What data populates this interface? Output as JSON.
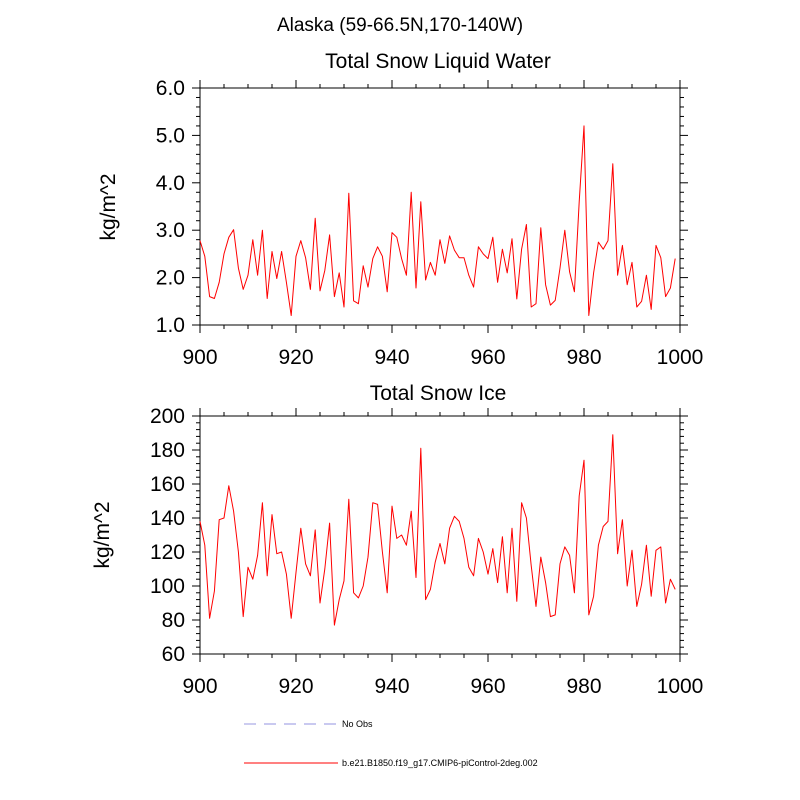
{
  "figure_title": "Alaska (59-66.5N,170-140W)",
  "legend": {
    "placement": "bottom-center",
    "entries": [
      {
        "label": "No Obs",
        "color": "#a9a9e6",
        "style": "dashed"
      },
      {
        "label": "b.e21.B1850.f19_g17.CMIP6-piControl-2deg.002",
        "color": "#ff0000",
        "style": "solid"
      }
    ]
  },
  "chart_data": [
    {
      "type": "line",
      "title": "Total Snow Liquid Water",
      "xlabel": "",
      "ylabel": "kg/m^2",
      "xlim": [
        900,
        1000
      ],
      "ylim": [
        1.0,
        6.0
      ],
      "xticks": [
        900,
        920,
        940,
        960,
        980,
        1000
      ],
      "xtick_labels": [
        "900",
        "920",
        "940",
        "960",
        "980",
        "1000"
      ],
      "yticks": [
        1.0,
        2.0,
        3.0,
        4.0,
        5.0,
        6.0
      ],
      "ytick_labels": [
        "1.0",
        "2.0",
        "3.0",
        "4.0",
        "5.0",
        "6.0"
      ],
      "grid": false,
      "series": [
        {
          "name": "b.e21.B1850.f19_g17.CMIP6-piControl-2deg.002",
          "color": "#ff0000",
          "x_start": 900,
          "x_step": 1,
          "values": [
            2.78,
            2.45,
            1.6,
            1.56,
            1.9,
            2.5,
            2.85,
            3.01,
            2.2,
            1.75,
            2.05,
            2.8,
            2.05,
            3.0,
            1.56,
            2.55,
            1.98,
            2.55,
            1.9,
            1.2,
            2.45,
            2.78,
            2.42,
            1.75,
            3.25,
            1.72,
            2.15,
            2.9,
            1.6,
            2.1,
            1.38,
            3.78,
            1.51,
            1.45,
            2.25,
            1.8,
            2.4,
            2.65,
            2.45,
            1.7,
            2.95,
            2.85,
            2.4,
            2.05,
            3.8,
            1.78,
            3.6,
            1.95,
            2.32,
            2.05,
            2.8,
            2.3,
            2.88,
            2.58,
            2.42,
            2.42,
            2.05,
            1.8,
            2.65,
            2.5,
            2.4,
            2.85,
            1.9,
            2.6,
            2.1,
            2.82,
            1.55,
            2.6,
            3.12,
            1.38,
            1.45,
            3.05,
            1.85,
            1.42,
            1.52,
            2.2,
            3.0,
            2.12,
            1.7,
            3.6,
            5.2,
            1.2,
            2.1,
            2.75,
            2.6,
            2.78,
            4.4,
            2.05,
            2.68,
            1.85,
            2.32,
            1.38,
            1.5,
            2.05,
            1.33,
            2.68,
            2.42,
            1.6,
            1.78,
            2.4
          ]
        }
      ]
    },
    {
      "type": "line",
      "title": "Total Snow Ice",
      "xlabel": "",
      "ylabel": "kg/m^2",
      "xlim": [
        900,
        1000
      ],
      "ylim": [
        60,
        200
      ],
      "xticks": [
        900,
        920,
        940,
        960,
        980,
        1000
      ],
      "xtick_labels": [
        "900",
        "920",
        "940",
        "960",
        "980",
        "1000"
      ],
      "yticks": [
        60,
        80,
        100,
        120,
        140,
        160,
        180,
        200
      ],
      "ytick_labels": [
        "60",
        "80",
        "100",
        "120",
        "140",
        "160",
        "180",
        "200"
      ],
      "grid": false,
      "series": [
        {
          "name": "b.e21.B1850.f19_g17.CMIP6-piControl-2deg.002",
          "color": "#ff0000",
          "x_start": 900,
          "x_step": 1,
          "values": [
            138,
            124,
            81,
            97,
            139,
            140,
            159,
            144,
            120,
            82,
            111,
            104,
            118,
            149,
            106,
            142,
            119,
            120,
            107,
            81,
            108,
            134,
            113,
            106,
            133,
            90,
            110,
            137,
            77,
            92,
            103,
            151,
            96,
            93,
            100,
            117,
            149,
            148,
            120,
            96,
            147,
            128,
            130,
            124,
            144,
            105,
            181,
            92,
            98,
            114,
            125,
            113,
            134,
            141,
            138,
            128,
            111,
            106,
            128,
            120,
            107,
            122,
            102,
            129,
            96,
            134,
            91,
            149,
            140,
            112,
            88,
            117,
            102,
            82,
            83,
            113,
            123,
            118,
            96,
            153,
            174,
            83,
            94,
            124,
            135,
            138,
            189,
            119,
            139,
            100,
            121,
            88,
            101,
            124,
            94,
            121,
            123,
            90,
            104,
            98
          ]
        }
      ]
    }
  ]
}
